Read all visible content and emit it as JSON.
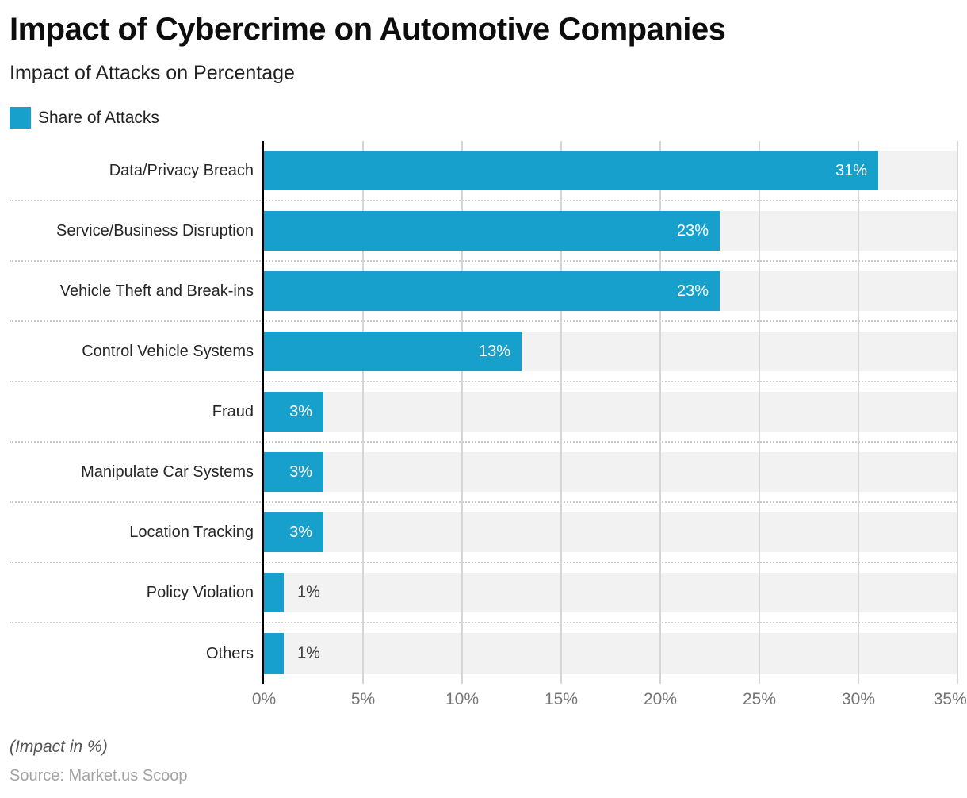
{
  "header": {
    "title": "Impact of Cybercrime on Automotive Companies",
    "subtitle": "Impact of Attacks on Percentage"
  },
  "legend": {
    "label": "Share of Attacks"
  },
  "chart_data": {
    "type": "bar",
    "orientation": "horizontal",
    "title": "Impact of Cybercrime on Automotive Companies",
    "subtitle": "Impact of Attacks on Percentage",
    "series_name": "Share of Attacks",
    "categories": [
      "Data/Privacy Breach",
      "Service/Business Disruption",
      "Vehicle Theft and Break-ins",
      "Control Vehicle Systems",
      "Fraud",
      "Manipulate Car Systems",
      "Location Tracking",
      "Policy Violation",
      "Others"
    ],
    "values": [
      31,
      23,
      23,
      13,
      3,
      3,
      3,
      1,
      1
    ],
    "value_labels": [
      "31%",
      "23%",
      "23%",
      "13%",
      "3%",
      "3%",
      "3%",
      "1%",
      "1%"
    ],
    "x_tick_labels": [
      "0%",
      "5%",
      "10%",
      "15%",
      "20%",
      "25%",
      "30%",
      "35%"
    ],
    "xlim": [
      0,
      35
    ],
    "grid": "vertical",
    "legend_position": "top-left",
    "colors": {
      "bar": "#18a0cd",
      "track": "#f2f2f2",
      "gridline": "#d6d6d6",
      "axis": "#000000",
      "value_label_inside": "#ffffff",
      "value_label_outside": "#404040"
    }
  },
  "footer": {
    "note": "(Impact in %)",
    "source": "Source: Market.us Scoop"
  }
}
